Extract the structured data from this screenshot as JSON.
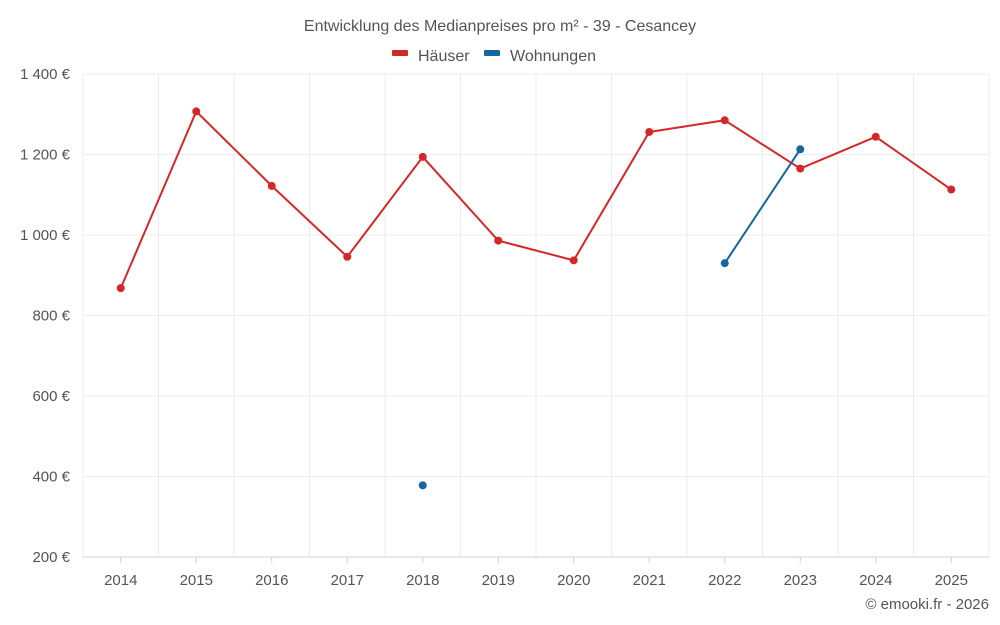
{
  "chart_data": {
    "type": "line",
    "title": "Entwicklung des Medianpreises pro m² - 39 - Cesancey",
    "categories": [
      "2014",
      "2015",
      "2016",
      "2017",
      "2018",
      "2019",
      "2020",
      "2021",
      "2022",
      "2023",
      "2024",
      "2025"
    ],
    "ylim": [
      200,
      1400
    ],
    "yticks": [
      200,
      400,
      600,
      800,
      1000,
      1200,
      1400
    ],
    "ytick_labels": [
      "200 €",
      "400 €",
      "600 €",
      "800 €",
      "1 000 €",
      "1 200 €",
      "1 400 €"
    ],
    "legend_position": "top-center",
    "series": [
      {
        "name": "Häuser",
        "color": "#d62728",
        "values": [
          868,
          1307,
          1122,
          946,
          1194,
          986,
          937,
          1256,
          1285,
          1165,
          1244,
          1113
        ]
      },
      {
        "name": "Wohnungen",
        "color": "#1565a0",
        "values": [
          null,
          null,
          null,
          null,
          378,
          null,
          null,
          null,
          930,
          1213,
          null,
          null
        ]
      }
    ]
  },
  "credit": "© emooki.fr - 2026"
}
